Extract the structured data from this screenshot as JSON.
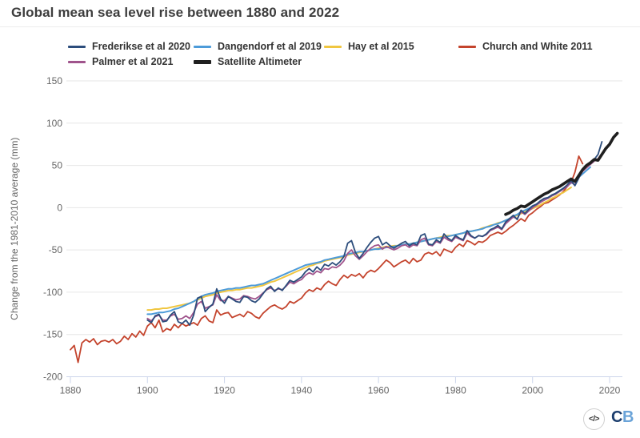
{
  "header": {
    "title": "Global mean sea level rise between 1880 and 2022"
  },
  "legend": [
    {
      "label": "Frederikse et al 2020",
      "color": "#2c4d7c",
      "thick": false
    },
    {
      "label": "Dangendorf et al 2019",
      "color": "#4d9bd9",
      "thick": false
    },
    {
      "label": "Hay et al 2015",
      "color": "#f0c640",
      "thick": false
    },
    {
      "label": "Church and White 2011",
      "color": "#c4442d",
      "thick": false
    },
    {
      "label": "Palmer et al 2021",
      "color": "#a0548c",
      "thick": false
    },
    {
      "label": "Satellite Altimeter",
      "color": "#1f1f1f",
      "thick": true
    }
  ],
  "footer": {
    "embed_icon": "</>",
    "logo_c": "C",
    "logo_b": "B"
  },
  "chart_data": {
    "type": "line",
    "title": "Global mean sea level rise between 1880 and 2022",
    "xlabel": "",
    "ylabel": "Change from the 1981-2010 average (mm)",
    "x_ticks": [
      1880,
      1900,
      1920,
      1940,
      1960,
      1980,
      2000,
      2020
    ],
    "y_ticks": [
      150,
      100,
      50,
      0,
      -50,
      -100,
      -150,
      -200
    ],
    "xlim": [
      1880,
      2023
    ],
    "ylim": [
      -200,
      150
    ],
    "grid": "horizontal",
    "legend_position": "top",
    "series": [
      {
        "name": "Church and White 2011",
        "color": "#c4442d",
        "width": 1.8,
        "start_year": 1880,
        "values": [
          -168,
          -163,
          -183,
          -160,
          -156,
          -159,
          -155,
          -162,
          -158,
          -157,
          -159,
          -156,
          -161,
          -158,
          -152,
          -156,
          -149,
          -153,
          -146,
          -151,
          -140,
          -136,
          -142,
          -133,
          -147,
          -143,
          -145,
          -138,
          -142,
          -137,
          -140,
          -138,
          -136,
          -139,
          -131,
          -128,
          -134,
          -136,
          -121,
          -127,
          -125,
          -124,
          -130,
          -128,
          -126,
          -129,
          -123,
          -125,
          -129,
          -131,
          -125,
          -121,
          -117,
          -115,
          -118,
          -120,
          -117,
          -111,
          -113,
          -110,
          -107,
          -101,
          -97,
          -99,
          -95,
          -97,
          -91,
          -87,
          -90,
          -92,
          -85,
          -80,
          -83,
          -79,
          -81,
          -78,
          -83,
          -77,
          -74,
          -76,
          -72,
          -67,
          -62,
          -65,
          -70,
          -67,
          -64,
          -62,
          -66,
          -60,
          -64,
          -62,
          -55,
          -53,
          -55,
          -52,
          -57,
          -49,
          -51,
          -53,
          -47,
          -43,
          -46,
          -39,
          -41,
          -44,
          -40,
          -41,
          -38,
          -33,
          -31,
          -29,
          -31,
          -28,
          -24,
          -21,
          -17,
          -13,
          -16,
          -9,
          -6,
          -2,
          1,
          5,
          6,
          9,
          12,
          15,
          19,
          25,
          30,
          42,
          61,
          52
        ]
      },
      {
        "name": "Hay et al 2015",
        "color": "#f0c640",
        "width": 2,
        "start_year": 1900,
        "values": [
          -121,
          -121,
          -120,
          -120,
          -119,
          -119,
          -118,
          -117,
          -116,
          -115,
          -114,
          -113,
          -111,
          -109,
          -107,
          -105,
          -104,
          -103,
          -101,
          -100,
          -99,
          -98,
          -98,
          -97,
          -97,
          -96,
          -95,
          -95,
          -94,
          -93,
          -92,
          -90,
          -88,
          -87,
          -85,
          -83,
          -81,
          -79,
          -77,
          -75,
          -73,
          -71,
          -69,
          -68,
          -66,
          -65,
          -63,
          -62,
          -61,
          -60,
          -59,
          -58,
          -56,
          -55,
          -54,
          -53,
          -52,
          -51,
          -50,
          -49,
          -48,
          -47,
          -46,
          -46,
          -45,
          -45,
          -44,
          -43,
          -43,
          -42,
          -41,
          -40,
          -39,
          -38,
          -37,
          -36,
          -35,
          -34,
          -33,
          -33,
          -32,
          -31,
          -30,
          -29,
          -28,
          -27,
          -26,
          -24,
          -23,
          -21,
          -20,
          -18,
          -17,
          -15,
          -13,
          -11,
          -9,
          -7,
          -5,
          -3,
          -1,
          1,
          3,
          6,
          8,
          11,
          13,
          16,
          18,
          21,
          24
        ]
      },
      {
        "name": "Dangendorf et al 2019",
        "color": "#4d9bd9",
        "width": 2,
        "start_year": 1900,
        "values": [
          -126,
          -126,
          -125,
          -124,
          -124,
          -123,
          -122,
          -120,
          -119,
          -117,
          -115,
          -113,
          -111,
          -108,
          -105,
          -103,
          -102,
          -101,
          -99,
          -98,
          -97,
          -96,
          -96,
          -95,
          -95,
          -94,
          -93,
          -92,
          -92,
          -91,
          -90,
          -88,
          -86,
          -84,
          -82,
          -80,
          -78,
          -76,
          -74,
          -72,
          -70,
          -68,
          -67,
          -66,
          -65,
          -64,
          -62,
          -61,
          -60,
          -59,
          -58,
          -57,
          -55,
          -54,
          -53,
          -52,
          -52,
          -51,
          -50,
          -49,
          -49,
          -48,
          -47,
          -47,
          -46,
          -45,
          -44,
          -43,
          -43,
          -42,
          -41,
          -40,
          -39,
          -38,
          -37,
          -36,
          -36,
          -35,
          -34,
          -33,
          -32,
          -31,
          -30,
          -28,
          -28,
          -27,
          -26,
          -25,
          -23,
          -22,
          -20,
          -19,
          -17,
          -15,
          -13,
          -10,
          -8,
          -5,
          -3,
          -1,
          2,
          4,
          7,
          9,
          12,
          14,
          17,
          20,
          23,
          26,
          29,
          32,
          36,
          40,
          44,
          48
        ]
      },
      {
        "name": "Palmer et al 2021",
        "color": "#a0548c",
        "width": 1.8,
        "start_year": 1900,
        "values": [
          -131,
          -134,
          -129,
          -127,
          -133,
          -133,
          -128,
          -126,
          -132,
          -131,
          -128,
          -131,
          -124,
          -114,
          -111,
          -119,
          -117,
          -115,
          -103,
          -110,
          -110,
          -105,
          -107,
          -109,
          -108,
          -104,
          -105,
          -107,
          -108,
          -105,
          -101,
          -97,
          -95,
          -98,
          -96,
          -97,
          -93,
          -88,
          -90,
          -87,
          -85,
          -80,
          -77,
          -79,
          -75,
          -77,
          -72,
          -73,
          -70,
          -71,
          -68,
          -63,
          -54,
          -50,
          -57,
          -61,
          -57,
          -52,
          -48,
          -45,
          -44,
          -49,
          -46,
          -48,
          -50,
          -48,
          -45,
          -44,
          -47,
          -44,
          -45,
          -38,
          -36,
          -44,
          -45,
          -40,
          -42,
          -35,
          -38,
          -40,
          -35,
          -37,
          -39,
          -30,
          -34,
          -36,
          -33,
          -34,
          -32,
          -27,
          -25,
          -23,
          -26,
          -19,
          -15,
          -11,
          -13,
          -5,
          -8,
          -4,
          0,
          3,
          6,
          9,
          11,
          14,
          16,
          19,
          22,
          25,
          30,
          27,
          36,
          43,
          47,
          51,
          55,
          58,
          64,
          70,
          74
        ]
      },
      {
        "name": "Frederikse et al 2020",
        "color": "#2c4d7c",
        "width": 1.8,
        "start_year": 1900,
        "values": [
          -133,
          -136,
          -128,
          -126,
          -135,
          -134,
          -127,
          -123,
          -135,
          -137,
          -133,
          -139,
          -127,
          -107,
          -105,
          -123,
          -118,
          -114,
          -96,
          -108,
          -113,
          -105,
          -108,
          -111,
          -112,
          -105,
          -106,
          -110,
          -112,
          -108,
          -102,
          -96,
          -93,
          -99,
          -95,
          -98,
          -92,
          -86,
          -88,
          -85,
          -82,
          -76,
          -72,
          -76,
          -70,
          -74,
          -67,
          -69,
          -65,
          -68,
          -64,
          -58,
          -42,
          -39,
          -53,
          -60,
          -54,
          -47,
          -41,
          -36,
          -34,
          -44,
          -41,
          -45,
          -48,
          -45,
          -42,
          -40,
          -45,
          -42,
          -44,
          -33,
          -31,
          -43,
          -44,
          -38,
          -41,
          -31,
          -36,
          -39,
          -33,
          -36,
          -38,
          -27,
          -33,
          -36,
          -33,
          -34,
          -31,
          -26,
          -24,
          -21,
          -25,
          -17,
          -13,
          -9,
          -14,
          -3,
          -7,
          -2,
          2,
          4,
          8,
          11,
          12,
          15,
          17,
          20,
          23,
          27,
          32,
          26,
          35,
          44,
          49,
          52,
          57,
          63,
          78
        ]
      },
      {
        "name": "Satellite Altimeter",
        "color": "#1f1f1f",
        "width": 3.6,
        "start_year": 1993,
        "values": [
          -8,
          -6,
          -3,
          -1,
          2,
          1,
          4,
          7,
          10,
          13,
          16,
          18,
          21,
          23,
          25,
          28,
          31,
          34,
          31,
          38,
          45,
          50,
          53,
          57,
          56,
          63,
          70,
          75,
          83,
          88
        ]
      }
    ]
  }
}
